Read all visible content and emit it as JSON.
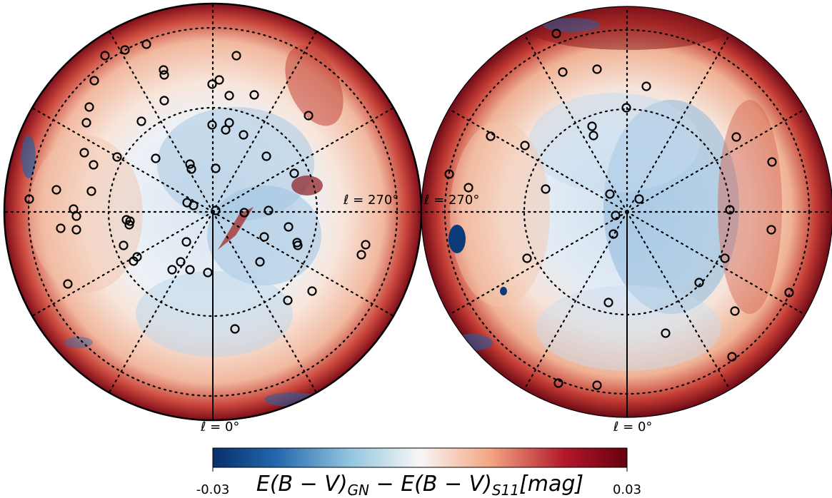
{
  "colors": {
    "low": "#08306b",
    "mid": "#f7f7f7",
    "high": "#67000d",
    "marker": "#000000"
  },
  "hemispheres": [
    {
      "name": "left",
      "labels": {
        "bottom": "ℓ = 0°",
        "right": "ℓ = 270°"
      }
    },
    {
      "name": "right",
      "labels": {
        "bottom": "ℓ = 0°",
        "left": "ℓ = 270°"
      }
    }
  ],
  "colorbar": {
    "min_label": "-0.03",
    "max_label": "0.03",
    "label": "E(B − V)GN − E(B − V)S11[mag]",
    "label_parts": {
      "a": "E(B − V)",
      "a_sub": "GN",
      "b": " − E(B − V)",
      "b_sub": "S11",
      "c": "[mag]"
    }
  }
}
